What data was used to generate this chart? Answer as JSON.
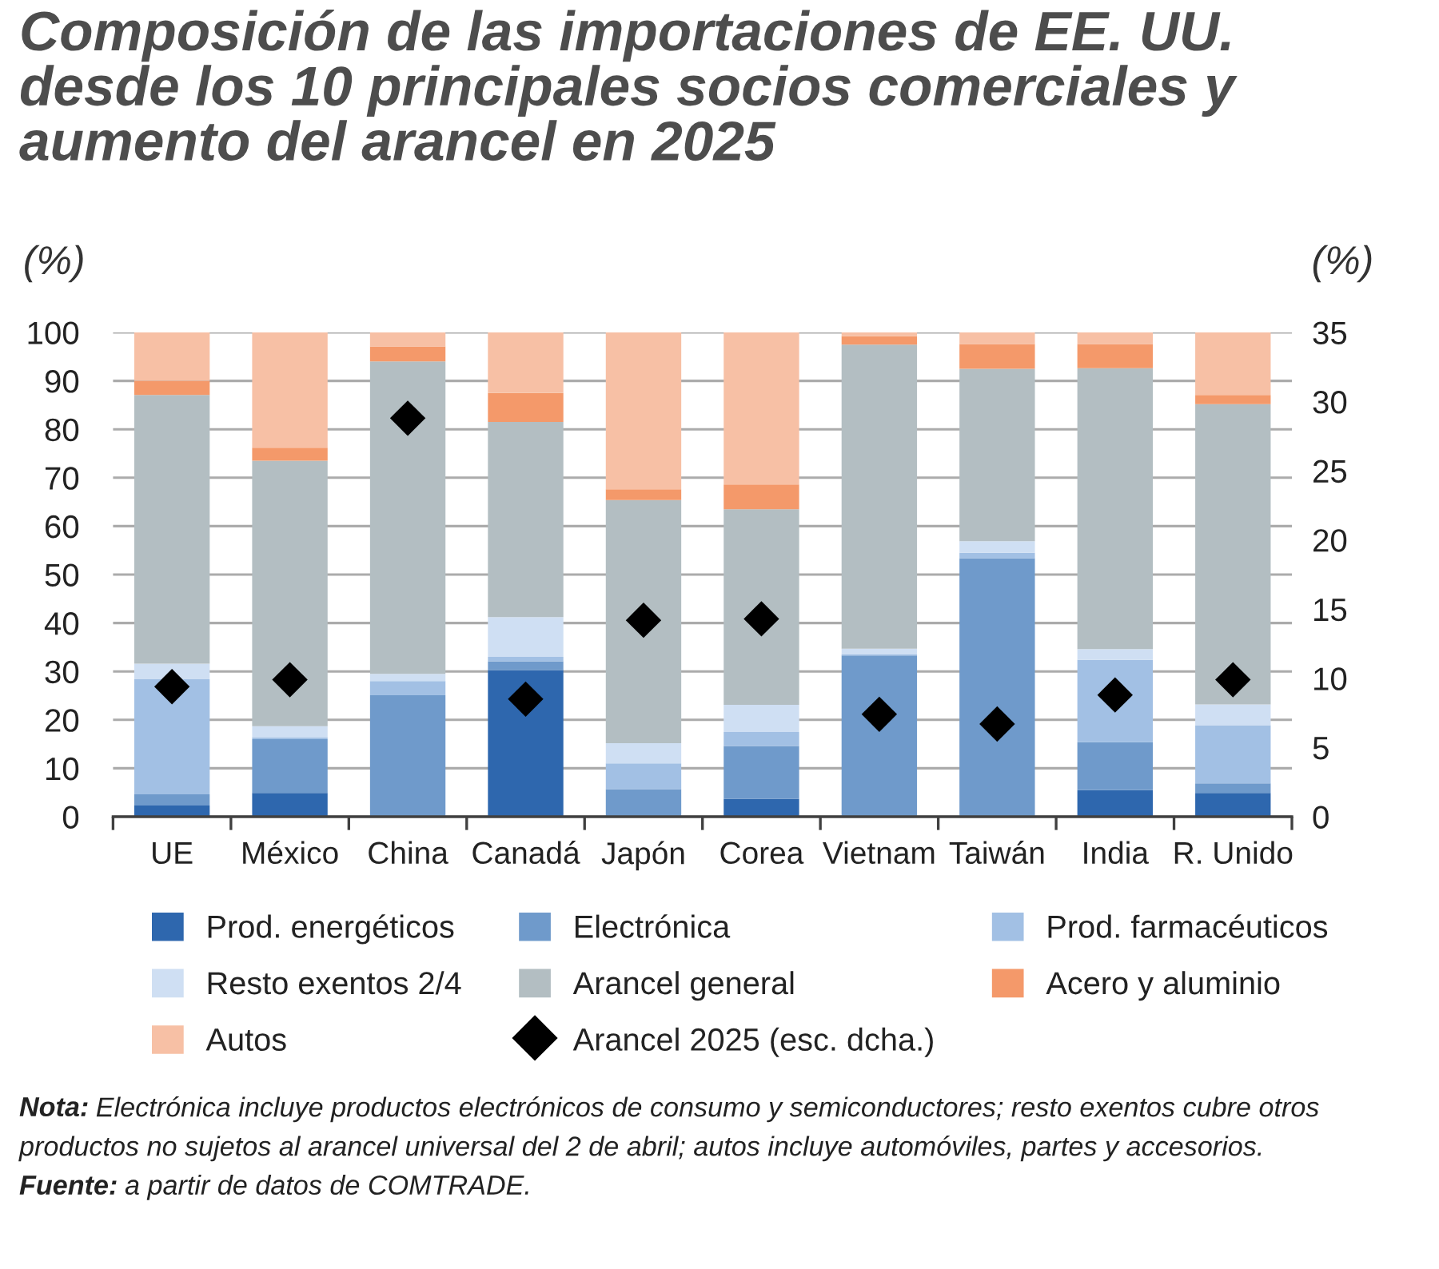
{
  "chart_data": {
    "type": "bar",
    "stacked": true,
    "title": "Composición de las importaciones de EE. UU. desde los 10 principales socios comerciales y aumento del arancel en 2025",
    "ylabel": "(%)",
    "y2label": "(%)",
    "categories": [
      "UE",
      "México",
      "China",
      "Canadá",
      "Japón",
      "Corea",
      "Vietnam",
      "Taiwán",
      "India",
      "R. Unido"
    ],
    "series": [
      {
        "name": "Prod. energéticos",
        "color": "#2e67ae",
        "values": [
          2.3,
          4.9,
          0,
          30.3,
          0,
          3.7,
          0,
          0,
          5.5,
          4.9
        ]
      },
      {
        "name": "Electrónica",
        "color": "#6f9acb",
        "values": [
          2.3,
          11.1,
          25.1,
          1.8,
          5.7,
          10.9,
          33.3,
          53.4,
          9.9,
          2.0
        ]
      },
      {
        "name": "Prod. farmacéuticos",
        "color": "#a2c0e4",
        "values": [
          23.8,
          0.4,
          2.9,
          0.9,
          5.3,
          2.9,
          0.3,
          1.1,
          17.0,
          12.0
        ]
      },
      {
        "name": "Resto exentos 2/4",
        "color": "#cfdff3",
        "values": [
          3.2,
          2.3,
          1.5,
          8.2,
          4.2,
          5.6,
          1.1,
          2.4,
          2.2,
          4.3
        ]
      },
      {
        "name": "Arancel general",
        "color": "#b3bec2",
        "values": [
          55.5,
          54.8,
          64.5,
          40.3,
          50.2,
          40.4,
          62.8,
          35.6,
          58.0,
          62.0
        ]
      },
      {
        "name": "Acero y aluminio",
        "color": "#f4996a",
        "values": [
          2.9,
          2.7,
          3.1,
          6.0,
          2.2,
          5.1,
          1.7,
          5.1,
          5.0,
          1.9
        ]
      },
      {
        "name": "Autos",
        "color": "#f7c0a5",
        "values": [
          10.0,
          23.8,
          2.9,
          12.5,
          32.4,
          31.4,
          0.8,
          2.4,
          2.4,
          12.9
        ]
      },
      {
        "name": "Arancel 2025 (esc. dcha.)",
        "type": "scatter",
        "axis": "y2",
        "marker": "diamond",
        "color": "#000000",
        "values": [
          9.4,
          9.9,
          28.8,
          8.5,
          14.2,
          14.3,
          7.4,
          6.7,
          8.8,
          9.9
        ]
      }
    ],
    "ylim": [
      0,
      100
    ],
    "yticks": [
      0,
      10,
      20,
      30,
      40,
      50,
      60,
      70,
      80,
      90,
      100
    ],
    "y2lim": [
      0,
      35
    ],
    "y2ticks": [
      0,
      5,
      10,
      15,
      20,
      25,
      30,
      35
    ],
    "grid": "y",
    "legend": "bottom",
    "annotations": [
      "Nota: Electrónica incluye productos electrónicos de consumo y semiconductores; resto exentos cubre otros productos no sujetos al arancel universal del 2 de abril; autos incluye automóviles, partes y accesorios.",
      "Fuente: a partir de datos de COMTRADE."
    ]
  }
}
